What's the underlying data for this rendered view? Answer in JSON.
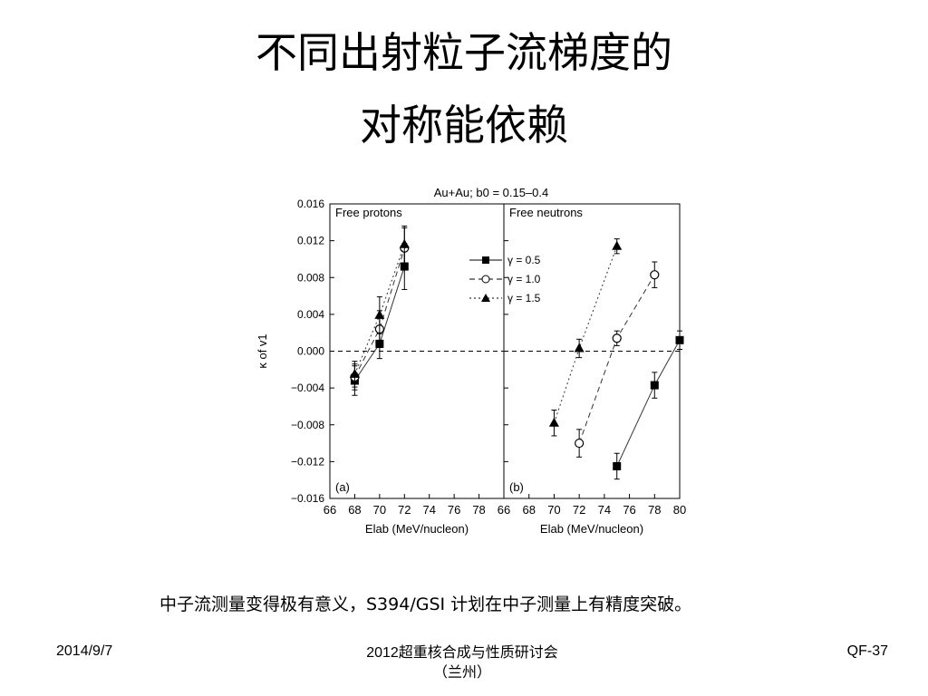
{
  "slide": {
    "title_line1": "不同出射粒子流梯度的",
    "title_line2": "对称能依赖",
    "caption": "中子流测量变得极有意义，S394/GSI 计划在中子测量上有精度突破。",
    "footer_date": "2014/9/7",
    "footer_conf_line1": "2012超重核合成与性质研讨会",
    "footer_conf_line2": "（兰州）",
    "footer_page": "QF-37"
  },
  "chart_data": [
    {
      "type": "scatter",
      "figure_title": "Au+Au; b0 = 0.15–0.4",
      "panel_label": "(a)",
      "panel_title": "Free protons",
      "ylabel": "κ of v1",
      "xlabel": "Elab (MeV/nucleon)",
      "xlim": [
        66,
        80
      ],
      "ylim": [
        -0.016,
        0.016
      ],
      "xticks": [
        66,
        68,
        70,
        72,
        74,
        76,
        78
      ],
      "yticks": [
        "0.016",
        "0.012",
        "0.008",
        "0.004",
        "0.000",
        "−0.004",
        "−0.008",
        "−0.012",
        "−0.016"
      ],
      "reference_line_y": 0,
      "series": [
        {
          "name": "γ = 0.5",
          "marker": "filled-square",
          "line": "solid",
          "x": [
            68,
            70,
            72
          ],
          "y": [
            -0.0032,
            0.0008,
            0.0092
          ],
          "err": [
            0.0016,
            0.0016,
            0.0025
          ]
        },
        {
          "name": "γ = 1.0",
          "marker": "open-circle",
          "line": "dashed",
          "x": [
            68,
            70,
            72
          ],
          "y": [
            -0.0028,
            0.0024,
            0.0112
          ],
          "err": [
            0.0014,
            0.002,
            0.0022
          ]
        },
        {
          "name": "γ = 1.5",
          "marker": "filled-triangle",
          "line": "dotted",
          "x": [
            68,
            70,
            72
          ],
          "y": [
            -0.0025,
            0.0039,
            0.0116
          ],
          "err": [
            0.0014,
            0.002,
            0.002
          ]
        }
      ]
    },
    {
      "type": "scatter",
      "panel_label": "(b)",
      "panel_title": "Free neutrons",
      "xlabel": "Elab (MeV/nucleon)",
      "xlim": [
        66,
        80
      ],
      "ylim": [
        -0.016,
        0.016
      ],
      "xticks": [
        66,
        68,
        70,
        72,
        74,
        76,
        78,
        80
      ],
      "reference_line_y": 0,
      "legend": {
        "placement": "top-left",
        "entries": [
          "γ = 0.5",
          "γ = 1.0",
          "γ = 1.5"
        ]
      },
      "series": [
        {
          "name": "γ = 0.5",
          "marker": "filled-square",
          "line": "solid",
          "x": [
            75,
            78,
            80
          ],
          "y": [
            -0.0125,
            -0.0037,
            0.0012
          ],
          "err": [
            0.0014,
            0.0014,
            0.001
          ]
        },
        {
          "name": "γ = 1.0",
          "marker": "open-circle",
          "line": "dashed",
          "x": [
            72,
            75,
            78
          ],
          "y": [
            -0.01,
            0.0014,
            0.0083
          ],
          "err": [
            0.0015,
            0.0008,
            0.0014
          ]
        },
        {
          "name": "γ = 1.5",
          "marker": "filled-triangle",
          "line": "dotted",
          "x": [
            70,
            72,
            75
          ],
          "y": [
            -0.0078,
            0.0003,
            0.0114
          ],
          "err": [
            0.0014,
            0.001,
            0.0008
          ]
        }
      ]
    }
  ]
}
